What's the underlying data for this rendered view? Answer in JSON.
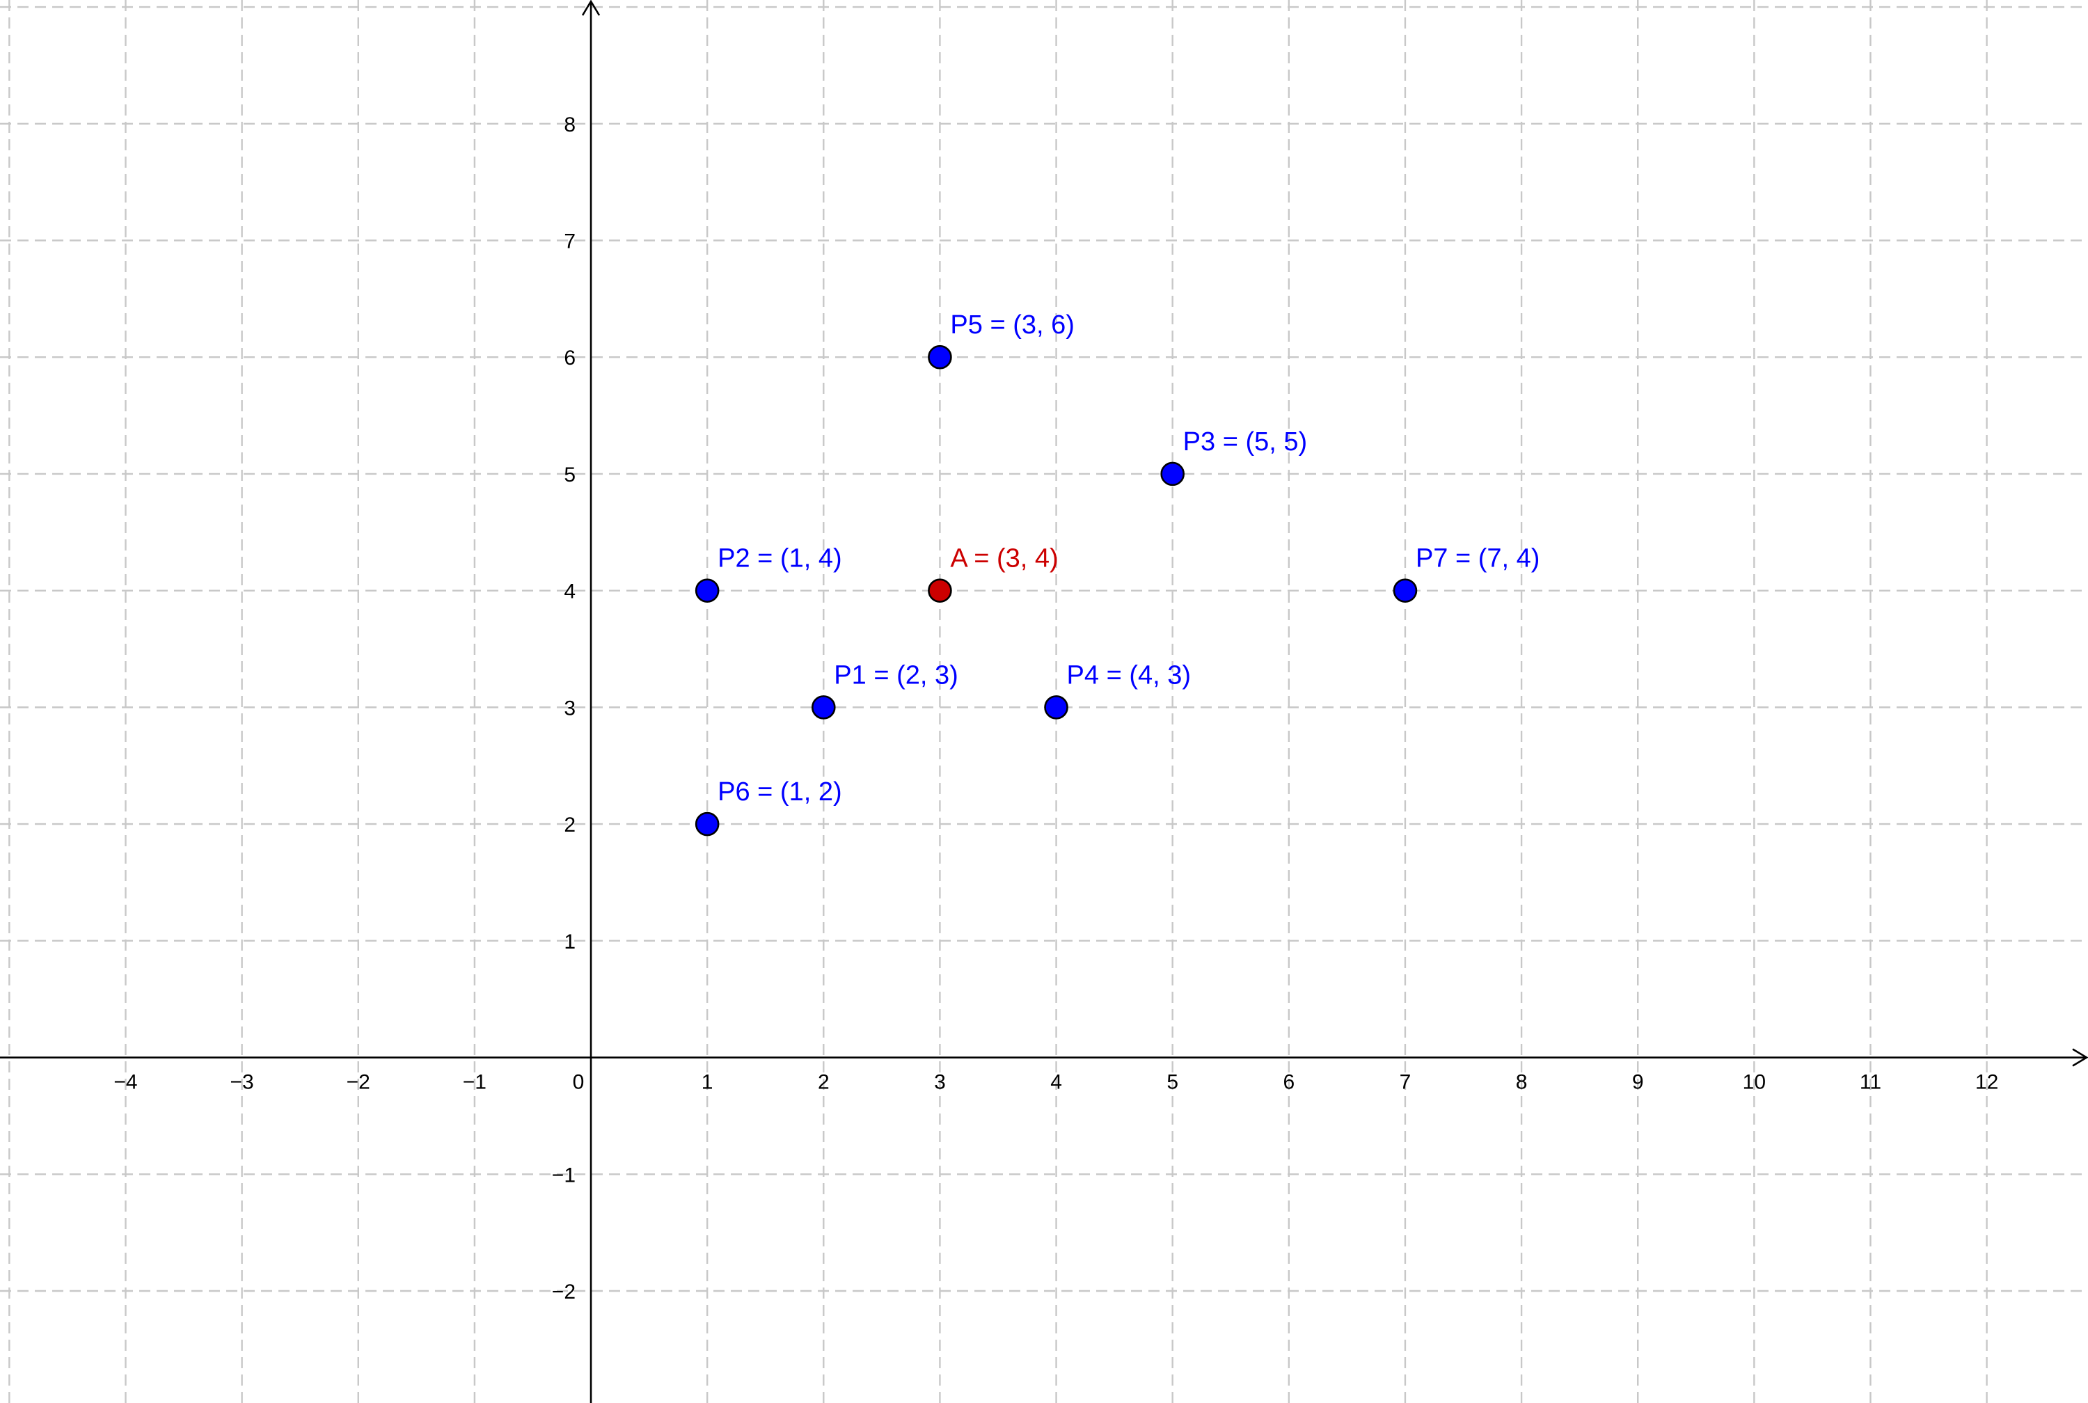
{
  "chart_data": {
    "type": "scatter",
    "title": "",
    "xlabel": "",
    "ylabel": "",
    "xlim": [
      -5.08,
      12.87
    ],
    "ylim": [
      -2.96,
      9.06
    ],
    "grid": true,
    "x_ticks": [
      -4,
      -3,
      -2,
      -1,
      0,
      1,
      2,
      3,
      4,
      5,
      6,
      7,
      8,
      9,
      10,
      11,
      12
    ],
    "y_ticks": [
      -2,
      -1,
      1,
      2,
      3,
      4,
      5,
      6,
      7,
      8
    ],
    "x_tick_labels": [
      "−4",
      "−3",
      "−2",
      "−1",
      "0",
      "1",
      "2",
      "3",
      "4",
      "5",
      "6",
      "7",
      "8",
      "9",
      "10",
      "11",
      "12"
    ],
    "y_tick_labels": [
      "−2",
      "−1",
      "1",
      "2",
      "3",
      "4",
      "5",
      "6",
      "7",
      "8"
    ],
    "points": [
      {
        "name": "P1",
        "x": 2,
        "y": 3,
        "label": "P1 = (2, 3)",
        "color": "#0000ff"
      },
      {
        "name": "P2",
        "x": 1,
        "y": 4,
        "label": "P2 = (1, 4)",
        "color": "#0000ff"
      },
      {
        "name": "P3",
        "x": 5,
        "y": 5,
        "label": "P3 = (5, 5)",
        "color": "#0000ff"
      },
      {
        "name": "P4",
        "x": 4,
        "y": 3,
        "label": "P4 = (4, 3)",
        "color": "#0000ff"
      },
      {
        "name": "P5",
        "x": 3,
        "y": 6,
        "label": "P5 = (3, 6)",
        "color": "#0000ff"
      },
      {
        "name": "P6",
        "x": 1,
        "y": 2,
        "label": "P6 = (1, 2)",
        "color": "#0000ff"
      },
      {
        "name": "P7",
        "x": 7,
        "y": 4,
        "label": "P7 = (7, 4)",
        "color": "#0000ff"
      },
      {
        "name": "A",
        "x": 3,
        "y": 4,
        "label": "A = (3, 4)",
        "color": "#cc0000"
      }
    ]
  }
}
